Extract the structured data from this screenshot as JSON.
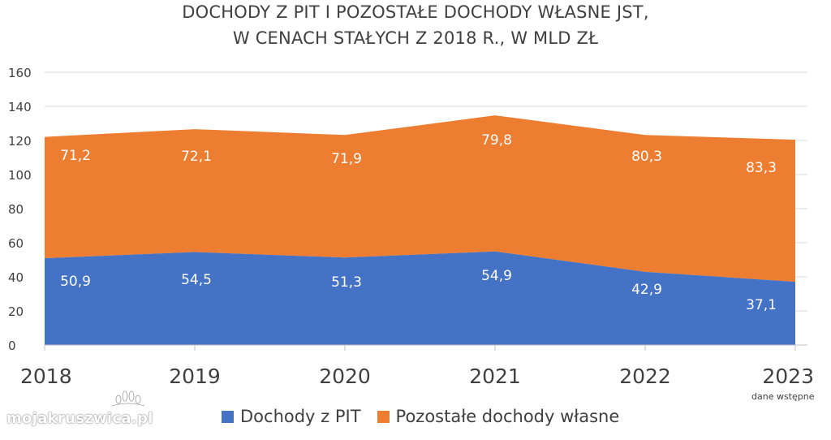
{
  "chart_data": {
    "type": "area",
    "stacked": true,
    "title": [
      "DOCHODY Z PIT I POZOSTAŁE DOCHODY WŁASNE JST,",
      "W CENACH STAŁYCH Z 2018 R., W MLD ZŁ"
    ],
    "categories": [
      "2018",
      "2019",
      "2020",
      "2021",
      "2022",
      "2023"
    ],
    "series": [
      {
        "name": "Dochody z PIT",
        "color": "#4472C4",
        "values": [
          50.9,
          54.5,
          51.3,
          54.9,
          42.9,
          37.1
        ],
        "labels": [
          "50,9",
          "54,5",
          "51,3",
          "54,9",
          "42,9",
          "37,1"
        ]
      },
      {
        "name": "Pozostałe dochody własne",
        "color": "#ED7D31",
        "values": [
          71.2,
          72.1,
          71.9,
          79.8,
          80.3,
          83.3
        ],
        "labels": [
          "71,2",
          "72,1",
          "71,9",
          "79,8",
          "80,3",
          "83,3"
        ]
      }
    ],
    "yaxis": {
      "min": 0,
      "max": 160,
      "ticks": [
        0,
        20,
        40,
        60,
        80,
        100,
        120,
        140,
        160
      ]
    },
    "grid": true,
    "legend_position": "bottom",
    "annotation": "dane wstępne"
  },
  "watermark": "mojakruszwica.pl",
  "colors": {
    "grid": "#d9d9d9",
    "axis": "#bfbfbf",
    "text": "#404040"
  }
}
